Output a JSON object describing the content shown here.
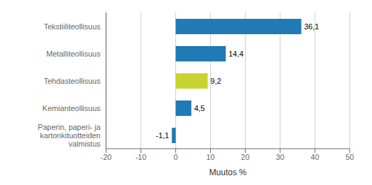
{
  "chart_data": {
    "type": "bar",
    "orientation": "horizontal",
    "categories": [
      "Paperin, paperi- ja kartonkituotteiden valmistus",
      "Kemianteollisuus",
      "Tehdasteollisuus",
      "Metalliteollisuus",
      "Tekstiiliteollisuus"
    ],
    "values": [
      -1.1,
      4.5,
      9.2,
      14.4,
      36.1
    ],
    "value_labels": [
      "-1,1",
      "4,5",
      "9,2",
      "14,4",
      "36,1"
    ],
    "colors": [
      "#1f7ab5",
      "#1f7ab5",
      "#c8d42f",
      "#1f7ab5",
      "#1f7ab5"
    ],
    "xlabel": "Muutos %",
    "xlim": [
      -20,
      50
    ],
    "xticks": [
      -20,
      -10,
      0,
      10,
      20,
      30,
      40,
      50
    ],
    "grid": true,
    "data_labels": true
  }
}
